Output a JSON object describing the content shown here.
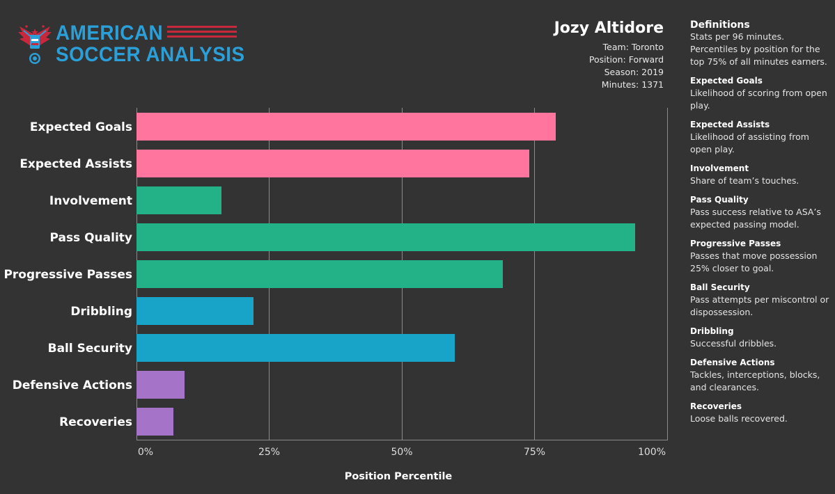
{
  "logo": {
    "line1": "AMERICAN",
    "line2": "SOCCER ANALYSIS"
  },
  "player": {
    "name": "Jozy Altidore",
    "team": "Team: Toronto",
    "position": "Position: Forward",
    "season": "Season: 2019",
    "minutes": "Minutes: 1371"
  },
  "colors": {
    "background": "#333333",
    "pink": "#ff759e",
    "green": "#23b287",
    "blue": "#18a3c9",
    "purple": "#a573c8",
    "logo_blue": "#2a9fd8",
    "logo_red": "#c8283c"
  },
  "chart_data": {
    "type": "bar",
    "orientation": "horizontal",
    "categories": [
      "Expected Goals",
      "Expected Assists",
      "Involvement",
      "Pass Quality",
      "Progressive Passes",
      "Dribbling",
      "Ball Security",
      "Defensive Actions",
      "Recoveries"
    ],
    "values": [
      79,
      74,
      16,
      94,
      69,
      22,
      60,
      9,
      7
    ],
    "bar_colors": [
      "pink",
      "pink",
      "green",
      "green",
      "green",
      "blue",
      "blue",
      "purple",
      "purple"
    ],
    "xlabel": "Position Percentile",
    "ylabel": "",
    "xlim": [
      0,
      100
    ],
    "xticks": [
      0,
      25,
      50,
      75,
      100
    ],
    "xtick_labels": [
      "0%",
      "25%",
      "50%",
      "75%",
      "100%"
    ],
    "grid": true
  },
  "definitions": {
    "title": "Definitions",
    "intro": "Stats  per 96 minutes. Percentiles by position for the top 75% of all minutes earners.",
    "items": [
      {
        "term": "Expected Goals",
        "text": "Likelihood of scoring from open play."
      },
      {
        "term": "Expected Assists",
        "text": "Likelihood of assisting from open play."
      },
      {
        "term": "Involvement",
        "text": "Share of team’s touches."
      },
      {
        "term": "Pass Quality",
        "text": "Pass success relative to ASA’s expected passing model."
      },
      {
        "term": "Progressive Passes",
        "text": "Passes that move possession 25% closer to goal."
      },
      {
        "term": "Ball Security",
        "text": "Pass attempts per miscontrol or dispossession."
      },
      {
        "term": "Dribbling",
        "text": "Successful dribbles."
      },
      {
        "term": "Defensive Actions",
        "text": "Tackles, interceptions, blocks, and clearances."
      },
      {
        "term": "Recoveries",
        "text": "Loose balls recovered."
      }
    ]
  }
}
